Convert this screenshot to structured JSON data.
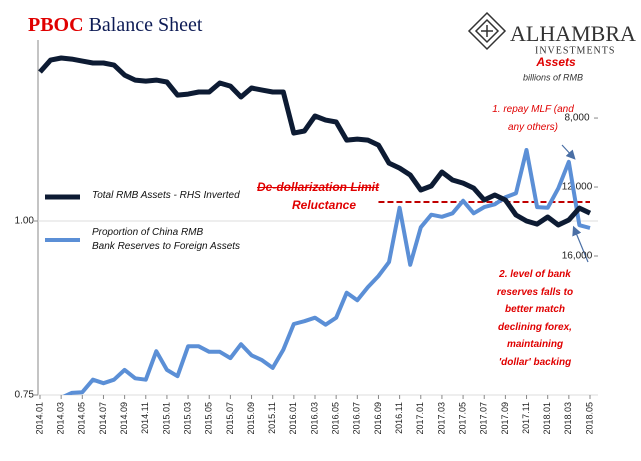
{
  "logo": {
    "name": "ALHAMBRA",
    "tagline": "INVESTMENTS"
  },
  "chart_data": {
    "type": "line",
    "title": [
      "PBOC",
      "Balance Sheet"
    ],
    "y2label": "Assets",
    "y2unit": "billions of RMB",
    "categories": [
      "2014.01",
      null,
      "2014.03",
      null,
      "2014.05",
      null,
      "2014.07",
      null,
      "2014.09",
      null,
      "2014.11",
      null,
      "2015.01",
      null,
      "2015.03",
      null,
      "2015.05",
      null,
      "2015.07",
      null,
      "2015.09",
      null,
      "2015.11",
      null,
      "2016.01",
      null,
      "2016.03",
      null,
      "2016.05",
      null,
      "2016.07",
      null,
      "2016.09",
      null,
      "2016.11",
      null,
      "2017.01",
      null,
      "2017.03",
      null,
      "2017.05",
      null,
      "2017.07",
      null,
      "2017.09",
      null,
      "2017.11",
      null,
      "2018.01",
      null,
      "2018.03",
      null,
      "2018.05"
    ],
    "series": [
      {
        "name": "Total RMB Assets - RHS Inverted",
        "color": "#0d1b33",
        "axis": "y2",
        "values": [
          5330,
          4640,
          4520,
          4580,
          4700,
          4810,
          4810,
          4930,
          5510,
          5800,
          5860,
          5800,
          5910,
          6670,
          6610,
          6490,
          6490,
          5970,
          6150,
          6780,
          6260,
          6380,
          6490,
          6490,
          8870,
          8750,
          7880,
          8120,
          8230,
          9280,
          9220,
          9280,
          9570,
          10610,
          10900,
          11300,
          12170,
          11940,
          11130,
          11590,
          11770,
          12060,
          12750,
          12460,
          12750,
          13620,
          13970,
          14150,
          13740,
          14200,
          13910,
          13220,
          13510
        ]
      },
      {
        "name": "Proportion of China RMB\nBank Reserves to Foreign Assets",
        "color": "#5b8fd6",
        "values": [
          0.728,
          0.736,
          0.746,
          0.753,
          0.754,
          0.772,
          0.767,
          0.772,
          0.786,
          0.774,
          0.772,
          0.813,
          0.786,
          0.777,
          0.82,
          0.82,
          0.812,
          0.812,
          0.803,
          0.823,
          0.807,
          0.8,
          0.789,
          0.815,
          0.852,
          0.856,
          0.861,
          0.851,
          0.861,
          0.897,
          0.886,
          0.905,
          0.921,
          0.941,
          1.019,
          0.937,
          0.991,
          1.009,
          1.006,
          1.011,
          1.029,
          1.011,
          1.02,
          1.024,
          1.034,
          1.04,
          1.102,
          1.02,
          1.019,
          1.047,
          1.085,
          0.994,
          0.99
        ]
      }
    ],
    "ylim": [
      0.75,
      1.25
    ],
    "yticks": [
      {
        "value": 0.75,
        "label": "0.75"
      },
      {
        "value": 1,
        "label": "1.00"
      }
    ],
    "y2lim": [
      24060,
      3880
    ],
    "y2ticks": [
      {
        "value": 8000,
        "label": "8,000"
      },
      {
        "value": 12000,
        "label": "12,000"
      },
      {
        "value": 16000,
        "label": "16,000"
      }
    ],
    "grid": true,
    "reference_line": {
      "value": 12870,
      "axis": "y2",
      "from": "2016.09",
      "color": "#c00000"
    },
    "annotations": [
      "De-dollarization Limit",
      "Reluctance",
      "1. repay MLF (and\nany others)",
      "2. level of bank\nreserves falls to\nbetter match\ndeclining forex,\nmaintaining\n'dollar' backing"
    ]
  }
}
